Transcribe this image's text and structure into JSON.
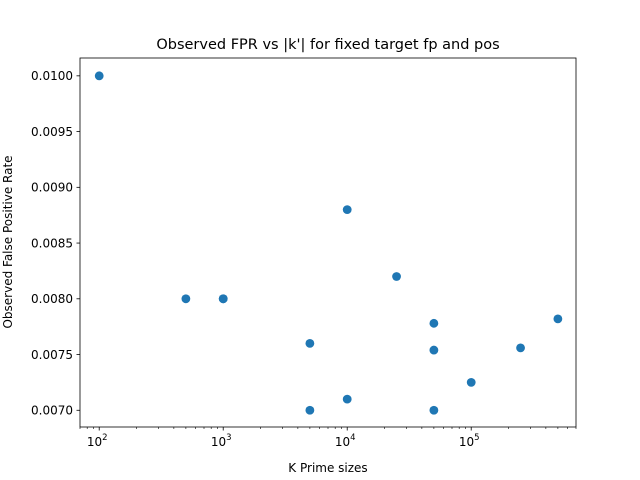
{
  "chart_data": {
    "type": "scatter",
    "title": "Observed FPR vs |k'| for fixed target fp and pos",
    "xlabel": "K Prime sizes",
    "ylabel": "Observed False Positive Rate",
    "xscale": "log",
    "xlim": [
      70,
      700000
    ],
    "ylim": [
      0.00685,
      0.01016
    ],
    "x_ticks": [
      {
        "value": 100,
        "base": "10",
        "exp": "2"
      },
      {
        "value": 1000,
        "base": "10",
        "exp": "3"
      },
      {
        "value": 10000,
        "base": "10",
        "exp": "4"
      },
      {
        "value": 100000,
        "base": "10",
        "exp": "5"
      }
    ],
    "y_ticks": [
      {
        "value": 0.007,
        "label": "0.0070"
      },
      {
        "value": 0.0075,
        "label": "0.0075"
      },
      {
        "value": 0.008,
        "label": "0.0080"
      },
      {
        "value": 0.0085,
        "label": "0.0085"
      },
      {
        "value": 0.009,
        "label": "0.0090"
      },
      {
        "value": 0.0095,
        "label": "0.0095"
      },
      {
        "value": 0.01,
        "label": "0.0100"
      }
    ],
    "grid": false,
    "marker_color": "#1f77b4",
    "points": [
      {
        "x": 100,
        "y": 0.01
      },
      {
        "x": 500,
        "y": 0.008
      },
      {
        "x": 1000,
        "y": 0.008
      },
      {
        "x": 1000,
        "y": 0.008
      },
      {
        "x": 5000,
        "y": 0.0076
      },
      {
        "x": 5000,
        "y": 0.007
      },
      {
        "x": 10000,
        "y": 0.0088
      },
      {
        "x": 10000,
        "y": 0.0071
      },
      {
        "x": 25000,
        "y": 0.0082
      },
      {
        "x": 50000,
        "y": 0.00778
      },
      {
        "x": 50000,
        "y": 0.00754
      },
      {
        "x": 50000,
        "y": 0.007
      },
      {
        "x": 100000,
        "y": 0.00725
      },
      {
        "x": 250000,
        "y": 0.00756
      },
      {
        "x": 500000,
        "y": 0.00782
      }
    ]
  }
}
